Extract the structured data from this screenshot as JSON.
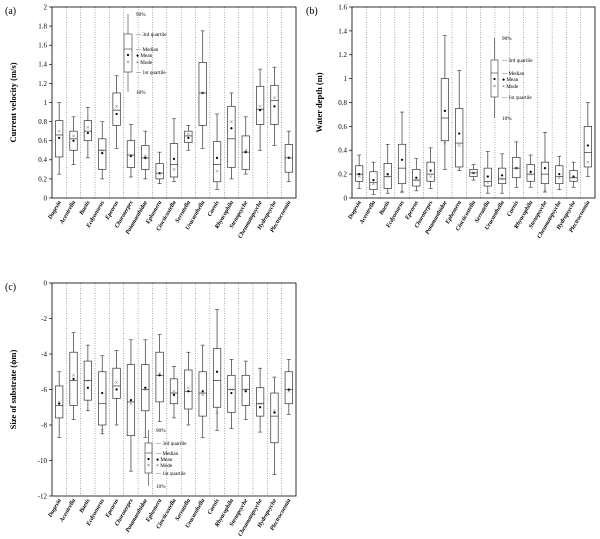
{
  "figure": {
    "categories": [
      "Dugesia",
      "Acentrella",
      "Baetis",
      "Ecdyonurus",
      "Epeorus",
      "Choroterpes",
      "Potamanthidae",
      "Ephemera",
      "Cincticostella",
      "Serratella",
      "Uracanthella",
      "Caenis",
      "Rhyacophila",
      "Stenopsyche",
      "Cheumatopsyche",
      "Hydropsyche",
      "Plectrocnemia"
    ],
    "legend": {
      "q90": "90%",
      "q3": "3rd quartile",
      "median": "Median",
      "mean": "Mean",
      "mode": "Mode",
      "q1": "1st quartile",
      "q10": "10%"
    }
  },
  "chart_data": [
    {
      "type": "box",
      "panel": "(a)",
      "title": "",
      "ylabel": "Current velocity (m/s)",
      "xlabel": "",
      "ylim": [
        0,
        2
      ],
      "yticks": [
        0,
        0.2,
        0.4,
        0.6,
        0.8,
        1,
        1.2,
        1.4,
        1.6,
        1.8,
        2
      ],
      "ytick_labels": [
        "0",
        "0.2",
        "0.4",
        "0.6",
        "0.8",
        "1",
        "1.2",
        "1.4",
        "1.6",
        "1.8",
        "2"
      ],
      "boxes": [
        {
          "p10": 0.25,
          "q1": 0.43,
          "median": 0.66,
          "q3": 0.81,
          "p90": 1.0,
          "mean": 0.63,
          "mode": 0.7
        },
        {
          "p10": 0.35,
          "q1": 0.5,
          "median": 0.62,
          "q3": 0.7,
          "p90": 0.85,
          "mean": 0.6,
          "mode": 0.65
        },
        {
          "p10": 0.42,
          "q1": 0.6,
          "median": 0.7,
          "q3": 0.81,
          "p90": 0.95,
          "mean": 0.68,
          "mode": 0.74
        },
        {
          "p10": 0.2,
          "q1": 0.3,
          "median": 0.5,
          "q3": 0.62,
          "p90": 0.8,
          "mean": 0.47,
          "mode": 0.5
        },
        {
          "p10": 0.52,
          "q1": 0.76,
          "median": 0.92,
          "q3": 1.1,
          "p90": 1.28,
          "mean": 0.88,
          "mode": 0.96
        },
        {
          "p10": 0.22,
          "q1": 0.32,
          "median": 0.45,
          "q3": 0.6,
          "p90": 0.77,
          "mean": 0.44,
          "mode": 0.45
        },
        {
          "p10": 0.2,
          "q1": 0.3,
          "median": 0.42,
          "q3": 0.55,
          "p90": 0.7,
          "mean": 0.42,
          "mode": 0.44
        },
        {
          "p10": 0.15,
          "q1": 0.2,
          "median": 0.26,
          "q3": 0.36,
          "p90": 0.48,
          "mean": 0.26,
          "mode": 0.25
        },
        {
          "p10": 0.17,
          "q1": 0.22,
          "median": 0.35,
          "q3": 0.57,
          "p90": 0.83,
          "mean": 0.41,
          "mode": 0.3
        },
        {
          "p10": 0.5,
          "q1": 0.58,
          "median": 0.65,
          "q3": 0.7,
          "p90": 0.76,
          "mean": 0.63,
          "mode": 0.67
        },
        {
          "p10": 0.52,
          "q1": 0.76,
          "median": 1.1,
          "q3": 1.42,
          "p90": 1.75,
          "mean": 1.1,
          "mode": 1.1
        },
        {
          "p10": 0.09,
          "q1": 0.17,
          "median": 0.35,
          "q3": 0.59,
          "p90": 0.88,
          "mean": 0.42,
          "mode": 0.28
        },
        {
          "p10": 0.2,
          "q1": 0.32,
          "median": 0.62,
          "q3": 0.96,
          "p90": 1.1,
          "mean": 0.73,
          "mode": 0.8
        },
        {
          "p10": 0.25,
          "q1": 0.3,
          "median": 0.48,
          "q3": 0.65,
          "p90": 0.85,
          "mean": 0.48,
          "mode": 0.5
        },
        {
          "p10": 0.5,
          "q1": 0.77,
          "median": 0.93,
          "q3": 1.17,
          "p90": 1.35,
          "mean": 0.92,
          "mode": 0.96
        },
        {
          "p10": 0.55,
          "q1": 0.77,
          "median": 1.02,
          "q3": 1.18,
          "p90": 1.37,
          "mean": 0.96,
          "mode": 1.05
        },
        {
          "p10": 0.17,
          "q1": 0.27,
          "median": 0.42,
          "q3": 0.56,
          "p90": 0.7,
          "mean": 0.42,
          "mode": 0.43
        }
      ]
    },
    {
      "type": "box",
      "panel": "(b)",
      "title": "",
      "ylabel": "Water depth (m)",
      "xlabel": "",
      "ylim": [
        0,
        1.6
      ],
      "yticks": [
        0,
        0.2,
        0.4,
        0.6,
        0.8,
        1,
        1.2,
        1.4,
        1.6
      ],
      "ytick_labels": [
        "0",
        "0.2",
        "0.4",
        "0.6",
        "0.8",
        "1",
        "1.2",
        "1.4",
        "1.6"
      ],
      "boxes": [
        {
          "p10": 0.08,
          "q1": 0.14,
          "median": 0.2,
          "q3": 0.27,
          "p90": 0.36,
          "mean": 0.2,
          "mode": 0.18
        },
        {
          "p10": 0.03,
          "q1": 0.07,
          "median": 0.13,
          "q3": 0.22,
          "p90": 0.3,
          "mean": 0.15,
          "mode": 0.12
        },
        {
          "p10": 0.04,
          "q1": 0.08,
          "median": 0.18,
          "q3": 0.29,
          "p90": 0.45,
          "mean": 0.2,
          "mode": 0.18
        },
        {
          "p10": 0.05,
          "q1": 0.12,
          "median": 0.25,
          "q3": 0.45,
          "p90": 0.72,
          "mean": 0.32,
          "mode": 0.05
        },
        {
          "p10": 0.06,
          "q1": 0.1,
          "median": 0.15,
          "q3": 0.24,
          "p90": 0.33,
          "mean": 0.17,
          "mode": 0.15
        },
        {
          "p10": 0.08,
          "q1": 0.14,
          "median": 0.2,
          "q3": 0.3,
          "p90": 0.42,
          "mean": 0.23,
          "mode": 0.18
        },
        {
          "p10": 0.24,
          "q1": 0.48,
          "median": 0.67,
          "q3": 1.0,
          "p90": 1.36,
          "mean": 0.73,
          "mode": 0.46
        },
        {
          "p10": 0.23,
          "q1": 0.26,
          "median": 0.46,
          "q3": 0.75,
          "p90": 1.07,
          "mean": 0.54,
          "mode": 0.44
        },
        {
          "p10": 0.15,
          "q1": 0.18,
          "median": 0.21,
          "q3": 0.24,
          "p90": 0.28,
          "mean": 0.21,
          "mode": 0.21
        },
        {
          "p10": 0.04,
          "q1": 0.1,
          "median": 0.14,
          "q3": 0.25,
          "p90": 0.39,
          "mean": 0.18,
          "mode": 0.13
        },
        {
          "p10": 0.04,
          "q1": 0.12,
          "median": 0.16,
          "q3": 0.25,
          "p90": 0.37,
          "mean": 0.19,
          "mode": 0.16
        },
        {
          "p10": 0.09,
          "q1": 0.17,
          "median": 0.25,
          "q3": 0.34,
          "p90": 0.47,
          "mean": 0.25,
          "mode": 0.25
        },
        {
          "p10": 0.09,
          "q1": 0.14,
          "median": 0.2,
          "q3": 0.28,
          "p90": 0.36,
          "mean": 0.22,
          "mode": 0.2
        },
        {
          "p10": 0.05,
          "q1": 0.12,
          "median": 0.2,
          "q3": 0.3,
          "p90": 0.55,
          "mean": 0.25,
          "mode": 0.06
        },
        {
          "p10": 0.07,
          "q1": 0.12,
          "median": 0.18,
          "q3": 0.27,
          "p90": 0.35,
          "mean": 0.2,
          "mode": 0.17
        },
        {
          "p10": 0.09,
          "q1": 0.14,
          "median": 0.17,
          "q3": 0.23,
          "p90": 0.3,
          "mean": 0.18,
          "mode": 0.17
        },
        {
          "p10": 0.18,
          "q1": 0.26,
          "median": 0.38,
          "q3": 0.6,
          "p90": 0.8,
          "mean": 0.44,
          "mode": 0.3
        }
      ]
    },
    {
      "type": "box",
      "panel": "(c)",
      "title": "",
      "ylabel": "Size of substrate (ϕm)",
      "xlabel": "",
      "ylim": [
        -12,
        0
      ],
      "yticks": [
        -12,
        -10,
        -8,
        -6,
        -4,
        -2,
        0
      ],
      "ytick_labels": [
        "-12",
        "-10",
        "-8",
        "-6",
        "-4",
        "-2",
        "0"
      ],
      "boxes": [
        {
          "p10": -8.7,
          "q1": -7.6,
          "median": -6.9,
          "q3": -5.8,
          "p90": -5.0,
          "mean": -6.8,
          "mode": -6.7
        },
        {
          "p10": -7.7,
          "q1": -6.9,
          "median": -5.5,
          "q3": -3.9,
          "p90": -2.8,
          "mean": -5.4,
          "mode": -5.2
        },
        {
          "p10": -7.2,
          "q1": -6.6,
          "median": -5.5,
          "q3": -4.4,
          "p90": -3.5,
          "mean": -5.9,
          "mode": -5.5
        },
        {
          "p10": -8.5,
          "q1": -8.0,
          "median": -6.8,
          "q3": -5.0,
          "p90": -4.1,
          "mean": -6.2,
          "mode": -8.3
        },
        {
          "p10": -8.0,
          "q1": -6.5,
          "median": -5.8,
          "q3": -4.8,
          "p90": -3.8,
          "mean": -6.0,
          "mode": -5.6
        },
        {
          "p10": -10.6,
          "q1": -8.6,
          "median": -6.7,
          "q3": -4.6,
          "p90": -3.2,
          "mean": -6.6,
          "mode": -6.8
        },
        {
          "p10": -8.7,
          "q1": -7.2,
          "median": -6.0,
          "q3": -4.6,
          "p90": -3.2,
          "mean": -5.9,
          "mode": -6.0
        },
        {
          "p10": -7.8,
          "q1": -6.7,
          "median": -5.2,
          "q3": -3.9,
          "p90": -2.9,
          "mean": -5.2,
          "mode": -5.1
        },
        {
          "p10": -7.6,
          "q1": -6.8,
          "median": -6.2,
          "q3": -5.4,
          "p90": -4.7,
          "mean": -6.3,
          "mode": -6.1
        },
        {
          "p10": -8.0,
          "q1": -7.1,
          "median": -6.1,
          "q3": -4.9,
          "p90": -3.9,
          "mean": -6.1,
          "mode": -5.9
        },
        {
          "p10": -8.7,
          "q1": -7.5,
          "median": -6.2,
          "q3": -5.0,
          "p90": -3.5,
          "mean": -6.1,
          "mode": -6.3
        },
        {
          "p10": -8.3,
          "q1": -7.0,
          "median": -5.5,
          "q3": -3.7,
          "p90": -1.5,
          "mean": -5.0,
          "mode": -7.3
        },
        {
          "p10": -8.2,
          "q1": -7.3,
          "median": -6.0,
          "q3": -5.2,
          "p90": -4.3,
          "mean": -6.2,
          "mode": -6.0
        },
        {
          "p10": -7.7,
          "q1": -6.9,
          "median": -6.0,
          "q3": -5.2,
          "p90": -4.4,
          "mean": -6.1,
          "mode": -6.0
        },
        {
          "p10": -8.4,
          "q1": -7.5,
          "median": -6.8,
          "q3": -5.9,
          "p90": -4.8,
          "mean": -7.0,
          "mode": -6.8
        },
        {
          "p10": -10.8,
          "q1": -9.0,
          "median": -7.5,
          "q3": -6.2,
          "p90": -5.3,
          "mean": -7.3,
          "mode": -7.2
        },
        {
          "p10": -7.4,
          "q1": -6.8,
          "median": -6.0,
          "q3": -5.0,
          "p90": -4.3,
          "mean": -6.0,
          "mode": -6.1
        }
      ]
    }
  ]
}
